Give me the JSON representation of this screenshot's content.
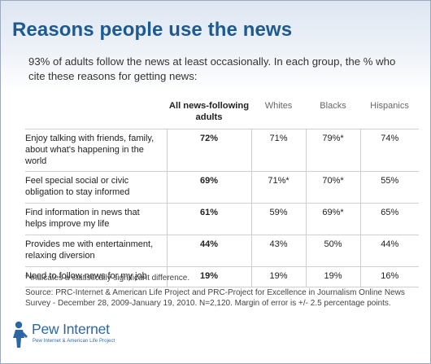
{
  "header": {
    "title": "Reasons people use the news",
    "subtitle": "93% of adults follow the news at least occasionally. In each group, the % who cite these reasons for getting news:"
  },
  "chart_data": {
    "type": "table",
    "columns": [
      "All news-following adults",
      "Whites",
      "Blacks",
      "Hispanics"
    ],
    "rows": [
      {
        "label": "Enjoy talking with friends, family, about what's happening in the world",
        "values": [
          "72%",
          "71%",
          "79%*",
          "74%"
        ]
      },
      {
        "label": "Feel special social or civic obligation to stay informed",
        "values": [
          "69%",
          "71%*",
          "70%*",
          "55%"
        ]
      },
      {
        "label": "Find information in news that helps improve my life",
        "values": [
          "61%",
          "59%",
          "69%*",
          "65%"
        ]
      },
      {
        "label": "Provides me with entertainment, relaxing diversion",
        "values": [
          "44%",
          "43%",
          "50%",
          "44%"
        ]
      },
      {
        "label": "Need to follow news for my job",
        "values": [
          "19%",
          "19%",
          "19%",
          "16%"
        ]
      }
    ]
  },
  "notes": {
    "footnote": "* indicates a statistically significant difference.",
    "source": "Source: PRC-Internet & American Life Project and PRC-Project for Excellence in Journalism Online News Survey - December 28, 2009-January 19, 2010. N=2,120. Margin of error is +/- 2.5 percentage points."
  },
  "logo": {
    "name": "Pew Internet",
    "tagline": "Pew Internet & American Life Project"
  },
  "colors": {
    "title": "#1d5a92",
    "header_band": "#dde6f1",
    "logo": "#2c67a4"
  }
}
